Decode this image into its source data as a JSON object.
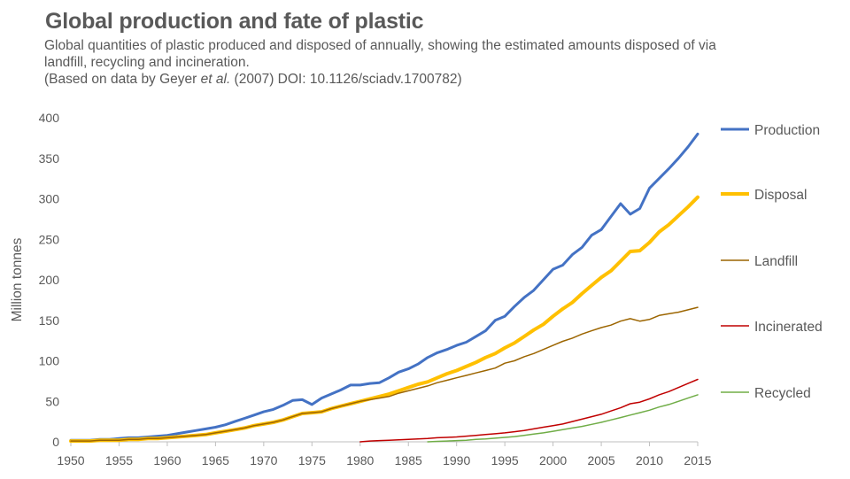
{
  "header": {
    "title": "Global production and fate of plastic",
    "subtitle": "Global quantities of plastic produced and disposed of annually, showing the estimated amounts disposed of via landfill, recycling and incineration.",
    "source_prefix": "(Based on data by Geyer ",
    "source_italic": "et al.",
    "source_suffix": " (2007) DOI: 10.1126/sciadv.1700782)"
  },
  "chart_data": {
    "type": "line",
    "title": "Global production and fate of plastic",
    "xlabel": "",
    "ylabel": "Million tonnes",
    "xlim": [
      1950,
      2015
    ],
    "ylim": [
      0,
      400
    ],
    "x_ticks": [
      1950,
      1955,
      1960,
      1965,
      1970,
      1975,
      1980,
      1985,
      1990,
      1995,
      2000,
      2005,
      2010,
      2015
    ],
    "y_ticks": [
      0,
      50,
      100,
      150,
      200,
      250,
      300,
      350,
      400
    ],
    "grid": false,
    "legend_position": "right",
    "series": [
      {
        "name": "Production",
        "color": "#4472C4",
        "width": 3,
        "x": [
          1950,
          1951,
          1952,
          1953,
          1954,
          1955,
          1956,
          1957,
          1958,
          1959,
          1960,
          1961,
          1962,
          1963,
          1964,
          1965,
          1966,
          1967,
          1968,
          1969,
          1970,
          1971,
          1972,
          1973,
          1974,
          1975,
          1976,
          1977,
          1978,
          1979,
          1980,
          1981,
          1982,
          1983,
          1984,
          1985,
          1986,
          1987,
          1988,
          1989,
          1990,
          1991,
          1992,
          1993,
          1994,
          1995,
          1996,
          1997,
          1998,
          1999,
          2000,
          2001,
          2002,
          2003,
          2004,
          2005,
          2006,
          2007,
          2008,
          2009,
          2010,
          2011,
          2012,
          2013,
          2014,
          2015
        ],
        "y": [
          2,
          2,
          2,
          3,
          3,
          4,
          5,
          5,
          6,
          7,
          8,
          10,
          12,
          14,
          16,
          18,
          21,
          25,
          29,
          33,
          37,
          40,
          45,
          51,
          52,
          46,
          54,
          59,
          64,
          70,
          70,
          72,
          73,
          79,
          86,
          90,
          96,
          104,
          110,
          114,
          119,
          123,
          130,
          137,
          150,
          155,
          167,
          178,
          187,
          200,
          213,
          218,
          231,
          240,
          255,
          262,
          278,
          294,
          281,
          288,
          313,
          325,
          337,
          350,
          364,
          380
        ]
      },
      {
        "name": "Disposal",
        "color": "#FFC000",
        "width": 4,
        "x": [
          1950,
          1951,
          1952,
          1953,
          1954,
          1955,
          1956,
          1957,
          1958,
          1959,
          1960,
          1961,
          1962,
          1963,
          1964,
          1965,
          1966,
          1967,
          1968,
          1969,
          1970,
          1971,
          1972,
          1973,
          1974,
          1975,
          1976,
          1977,
          1978,
          1979,
          1980,
          1981,
          1982,
          1983,
          1984,
          1985,
          1986,
          1987,
          1988,
          1989,
          1990,
          1991,
          1992,
          1993,
          1994,
          1995,
          1996,
          1997,
          1998,
          1999,
          2000,
          2001,
          2002,
          2003,
          2004,
          2005,
          2006,
          2007,
          2008,
          2009,
          2010,
          2011,
          2012,
          2013,
          2014,
          2015
        ],
        "y": [
          1,
          1,
          1,
          2,
          2,
          2,
          3,
          3,
          4,
          4,
          5,
          6,
          7,
          8,
          9,
          11,
          13,
          15,
          17,
          20,
          22,
          24,
          27,
          31,
          35,
          36,
          37,
          41,
          44,
          47,
          50,
          53,
          56,
          59,
          63,
          67,
          71,
          74,
          79,
          84,
          88,
          93,
          98,
          104,
          109,
          116,
          122,
          130,
          138,
          145,
          155,
          164,
          172,
          183,
          193,
          203,
          211,
          223,
          235,
          236,
          246,
          259,
          268,
          279,
          290,
          302
        ]
      },
      {
        "name": "Landfill",
        "color": "#9C6500",
        "width": 1.5,
        "x": [
          1950,
          1951,
          1952,
          1953,
          1954,
          1955,
          1956,
          1957,
          1958,
          1959,
          1960,
          1961,
          1962,
          1963,
          1964,
          1965,
          1966,
          1967,
          1968,
          1969,
          1970,
          1971,
          1972,
          1973,
          1974,
          1975,
          1976,
          1977,
          1978,
          1979,
          1980,
          1981,
          1982,
          1983,
          1984,
          1985,
          1986,
          1987,
          1988,
          1989,
          1990,
          1991,
          1992,
          1993,
          1994,
          1995,
          1996,
          1997,
          1998,
          1999,
          2000,
          2001,
          2002,
          2003,
          2004,
          2005,
          2006,
          2007,
          2008,
          2009,
          2010,
          2011,
          2012,
          2013,
          2014,
          2015
        ],
        "y": [
          1,
          1,
          1,
          2,
          2,
          2,
          3,
          3,
          4,
          4,
          5,
          6,
          7,
          8,
          9,
          11,
          13,
          15,
          17,
          20,
          22,
          24,
          27,
          31,
          35,
          36,
          37,
          41,
          44,
          47,
          50,
          52,
          54,
          56,
          60,
          63,
          66,
          69,
          73,
          76,
          79,
          82,
          85,
          88,
          91,
          97,
          100,
          105,
          109,
          114,
          119,
          124,
          128,
          133,
          137,
          141,
          144,
          149,
          152,
          149,
          151,
          156,
          158,
          160,
          163,
          166
        ]
      },
      {
        "name": "Incinerated",
        "color": "#C00000",
        "width": 1.5,
        "x": [
          1980,
          1981,
          1982,
          1983,
          1984,
          1985,
          1986,
          1987,
          1988,
          1989,
          1990,
          1991,
          1992,
          1993,
          1994,
          1995,
          1996,
          1997,
          1998,
          1999,
          2000,
          2001,
          2002,
          2003,
          2004,
          2005,
          2006,
          2007,
          2008,
          2009,
          2010,
          2011,
          2012,
          2013,
          2014,
          2015
        ],
        "y": [
          0,
          1,
          1.5,
          2,
          2.5,
          3,
          3.5,
          4,
          5,
          5.5,
          6,
          7,
          8,
          9,
          10,
          11,
          12.5,
          14,
          16,
          18,
          20,
          22,
          25,
          28,
          31,
          34,
          38,
          42,
          47,
          49,
          53,
          58,
          62,
          67,
          72,
          77
        ]
      },
      {
        "name": "Recycled",
        "color": "#70AD47",
        "width": 1.5,
        "x": [
          1987,
          1988,
          1989,
          1990,
          1991,
          1992,
          1993,
          1994,
          1995,
          1996,
          1997,
          1998,
          1999,
          2000,
          2001,
          2002,
          2003,
          2004,
          2005,
          2006,
          2007,
          2008,
          2009,
          2010,
          2011,
          2012,
          2013,
          2014,
          2015
        ],
        "y": [
          0,
          0.5,
          1,
          1.5,
          2,
          3,
          3.5,
          4.5,
          5.5,
          6.5,
          8,
          9.5,
          11,
          13,
          15,
          17,
          19,
          21.5,
          24,
          27,
          30,
          33,
          36,
          39,
          43,
          46,
          50,
          54,
          58
        ]
      }
    ]
  }
}
